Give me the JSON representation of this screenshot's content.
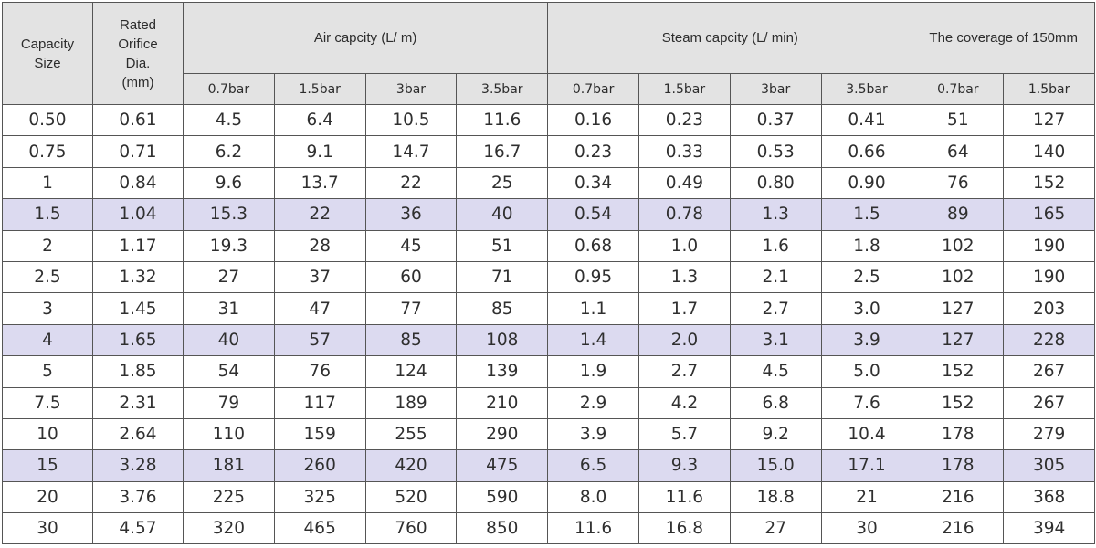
{
  "header": {
    "capacity_size": [
      "Capacity",
      "Size"
    ],
    "orifice": [
      "Rated",
      "Orifice",
      "Dia.",
      "(mm)"
    ],
    "air_group": "Air capcity (L/ m)",
    "steam_group": "Steam capcity (L/ min)",
    "coverage_group": "The coverage of 150mm",
    "air_pressures": [
      "0.7bar",
      "1.5bar",
      "3bar",
      "3.5bar"
    ],
    "steam_pressures": [
      "0.7bar",
      "1.5bar",
      "3bar",
      "3.5bar"
    ],
    "coverage_pressures": [
      "0.7bar",
      "1.5bar"
    ]
  },
  "highlight_color": "#dcdaf0",
  "rows": [
    {
      "highlight": false,
      "cells": [
        "0.50",
        "0.61",
        "4.5",
        "6.4",
        "10.5",
        "11.6",
        "0.16",
        "0.23",
        "0.37",
        "0.41",
        "51",
        "127"
      ]
    },
    {
      "highlight": false,
      "cells": [
        "0.75",
        "0.71",
        "6.2",
        "9.1",
        "14.7",
        "16.7",
        "0.23",
        "0.33",
        "0.53",
        "0.66",
        "64",
        "140"
      ]
    },
    {
      "highlight": false,
      "cells": [
        "1",
        "0.84",
        "9.6",
        "13.7",
        "22",
        "25",
        "0.34",
        "0.49",
        "0.80",
        "0.90",
        "76",
        "152"
      ]
    },
    {
      "highlight": true,
      "cells": [
        "1.5",
        "1.04",
        "15.3",
        "22",
        "36",
        "40",
        "0.54",
        "0.78",
        "1.3",
        "1.5",
        "89",
        "165"
      ]
    },
    {
      "highlight": false,
      "cells": [
        "2",
        "1.17",
        "19.3",
        "28",
        "45",
        "51",
        "0.68",
        "1.0",
        "1.6",
        "1.8",
        "102",
        "190"
      ]
    },
    {
      "highlight": false,
      "cells": [
        "2.5",
        "1.32",
        "27",
        "37",
        "60",
        "71",
        "0.95",
        "1.3",
        "2.1",
        "2.5",
        "102",
        "190"
      ]
    },
    {
      "highlight": false,
      "cells": [
        "3",
        "1.45",
        "31",
        "47",
        "77",
        "85",
        "1.1",
        "1.7",
        "2.7",
        "3.0",
        "127",
        "203"
      ]
    },
    {
      "highlight": true,
      "cells": [
        "4",
        "1.65",
        "40",
        "57",
        "85",
        "108",
        "1.4",
        "2.0",
        "3.1",
        "3.9",
        "127",
        "228"
      ]
    },
    {
      "highlight": false,
      "cells": [
        "5",
        "1.85",
        "54",
        "76",
        "124",
        "139",
        "1.9",
        "2.7",
        "4.5",
        "5.0",
        "152",
        "267"
      ]
    },
    {
      "highlight": false,
      "cells": [
        "7.5",
        "2.31",
        "79",
        "117",
        "189",
        "210",
        "2.9",
        "4.2",
        "6.8",
        "7.6",
        "152",
        "267"
      ]
    },
    {
      "highlight": false,
      "cells": [
        "10",
        "2.64",
        "110",
        "159",
        "255",
        "290",
        "3.9",
        "5.7",
        "9.2",
        "10.4",
        "178",
        "279"
      ]
    },
    {
      "highlight": true,
      "cells": [
        "15",
        "3.28",
        "181",
        "260",
        "420",
        "475",
        "6.5",
        "9.3",
        "15.0",
        "17.1",
        "178",
        "305"
      ]
    },
    {
      "highlight": false,
      "cells": [
        "20",
        "3.76",
        "225",
        "325",
        "520",
        "590",
        "8.0",
        "11.6",
        "18.8",
        "21",
        "216",
        "368"
      ]
    },
    {
      "highlight": false,
      "cells": [
        "30",
        "4.57",
        "320",
        "465",
        "760",
        "850",
        "11.6",
        "16.8",
        "27",
        "30",
        "216",
        "394"
      ]
    }
  ]
}
